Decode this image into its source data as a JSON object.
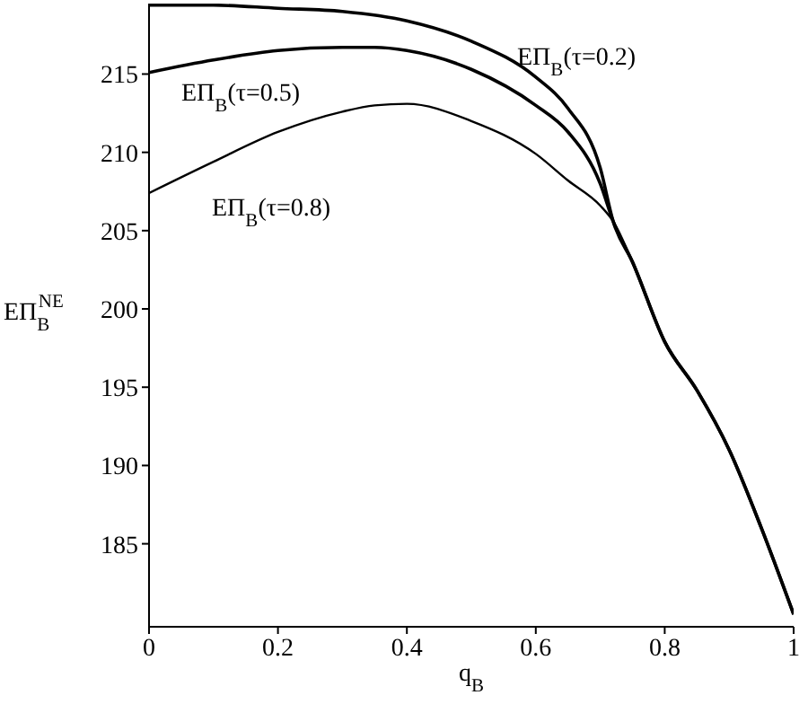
{
  "chart_data": {
    "type": "line",
    "xlabel": "q$_{B}$",
    "ylabel": "EΠ$_{B}$$^{NE}$",
    "xlim": [
      0,
      1
    ],
    "xticks": [
      0,
      0.2,
      0.4,
      0.6,
      0.8,
      1
    ],
    "ylim": [
      179.7,
      219.5
    ],
    "yticks": [
      185,
      190,
      195,
      200,
      205,
      210,
      215
    ],
    "series": [
      {
        "color": "#000000",
        "x": [
          0,
          0.1,
          0.2,
          0.3,
          0.4,
          0.5,
          0.6,
          0.65,
          0.7,
          0.72,
          0.75,
          0.8,
          0.85,
          0.9,
          0.95,
          1
        ],
        "values": [
          219.4,
          219.4,
          219.2,
          219.0,
          218.4,
          217.1,
          214.8,
          212.8,
          209.0,
          205.6,
          203.0,
          197.9,
          194.8,
          191.0,
          186.0,
          180.5
        ]
      },
      {
        "color": "#000000",
        "x": [
          0,
          0.1,
          0.2,
          0.3,
          0.35,
          0.4,
          0.5,
          0.6,
          0.65,
          0.7,
          0.72,
          0.75,
          0.8,
          0.85,
          0.9,
          0.95,
          1
        ],
        "values": [
          215.1,
          215.9,
          216.5,
          216.7,
          216.7,
          216.5,
          215.3,
          213.0,
          211.3,
          208.0,
          205.6,
          203.0,
          197.9,
          194.8,
          191.0,
          186.0,
          180.5
        ]
      },
      {
        "color": "#000000",
        "x": [
          0,
          0.1,
          0.2,
          0.3,
          0.35,
          0.4,
          0.5,
          0.6,
          0.65,
          0.7,
          0.72,
          0.75,
          0.8,
          0.85,
          0.9,
          0.95,
          1
        ],
        "values": [
          207.4,
          209.4,
          211.3,
          212.6,
          213.0,
          213.1,
          212.0,
          209.9,
          208.2,
          206.6,
          205.6,
          203.0,
          197.9,
          194.8,
          191.0,
          186.0,
          180.5
        ]
      }
    ],
    "annotations": [
      "EΠ$_{B}$(τ=0.2)",
      "EΠ$_{B}$(τ=0.5)",
      "EΠ$_{B}$(τ=0.8)"
    ],
    "marker": "none",
    "line_style": "solid"
  }
}
